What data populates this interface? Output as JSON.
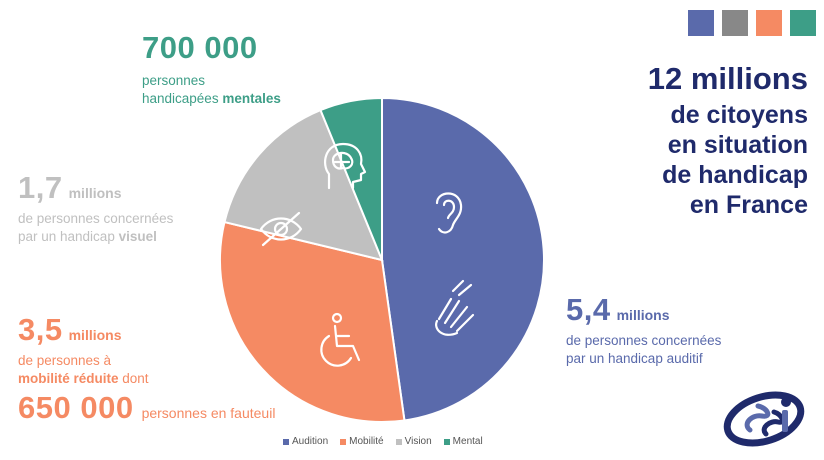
{
  "colors": {
    "audition": "#5a6aab",
    "mobilite": "#f58a63",
    "vision": "#c0c0c0",
    "mental": "#3d9e87",
    "navy": "#1f2a6b",
    "swatch_gray": "#888888"
  },
  "swatches": [
    "#5a6aab",
    "#888888",
    "#f58a63",
    "#3d9e87"
  ],
  "headline": {
    "number": "12 millions",
    "line1": "de citoyens",
    "line2": "en situation",
    "line3": "de handicap",
    "line4": "en France"
  },
  "mental": {
    "value": "700 000",
    "line1": "personnes",
    "line2_pre": "handicapées ",
    "line2_bold": "mentales"
  },
  "vision": {
    "value": "1,7",
    "unit": "millions",
    "line1": "de personnes concernées",
    "line2_pre": "par un handicap ",
    "line2_bold": "visuel"
  },
  "mobilite": {
    "value": "3,5",
    "unit": "millions",
    "line1": "de personnes à",
    "line2_bold": "mobilité réduite",
    "line2_post": " dont",
    "sub_value": "650 000",
    "sub_text": "personnes en fauteuil"
  },
  "audition": {
    "value": "5,4",
    "unit": "millions",
    "line1": "de personnes concernées",
    "line2": "par un handicap auditif"
  },
  "chart_data": {
    "type": "pie",
    "categories": [
      "Audition",
      "Mobilité",
      "Vision",
      "Mental"
    ],
    "values": [
      5.4,
      3.5,
      1.7,
      0.7
    ],
    "unit": "millions",
    "colors": [
      "#5a6aab",
      "#f58a63",
      "#c0c0c0",
      "#3d9e87"
    ],
    "icons": [
      "ear-icon",
      "wheelchair-icon",
      "crossed-eye-icon",
      "brain-head-icon"
    ],
    "legend_position": "bottom"
  },
  "legend": [
    {
      "label": "Audition",
      "color": "#5a6aab"
    },
    {
      "label": "Mobilité",
      "color": "#f58a63"
    },
    {
      "label": "Vision",
      "color": "#c0c0c0"
    },
    {
      "label": "Mental",
      "color": "#3d9e87"
    }
  ]
}
